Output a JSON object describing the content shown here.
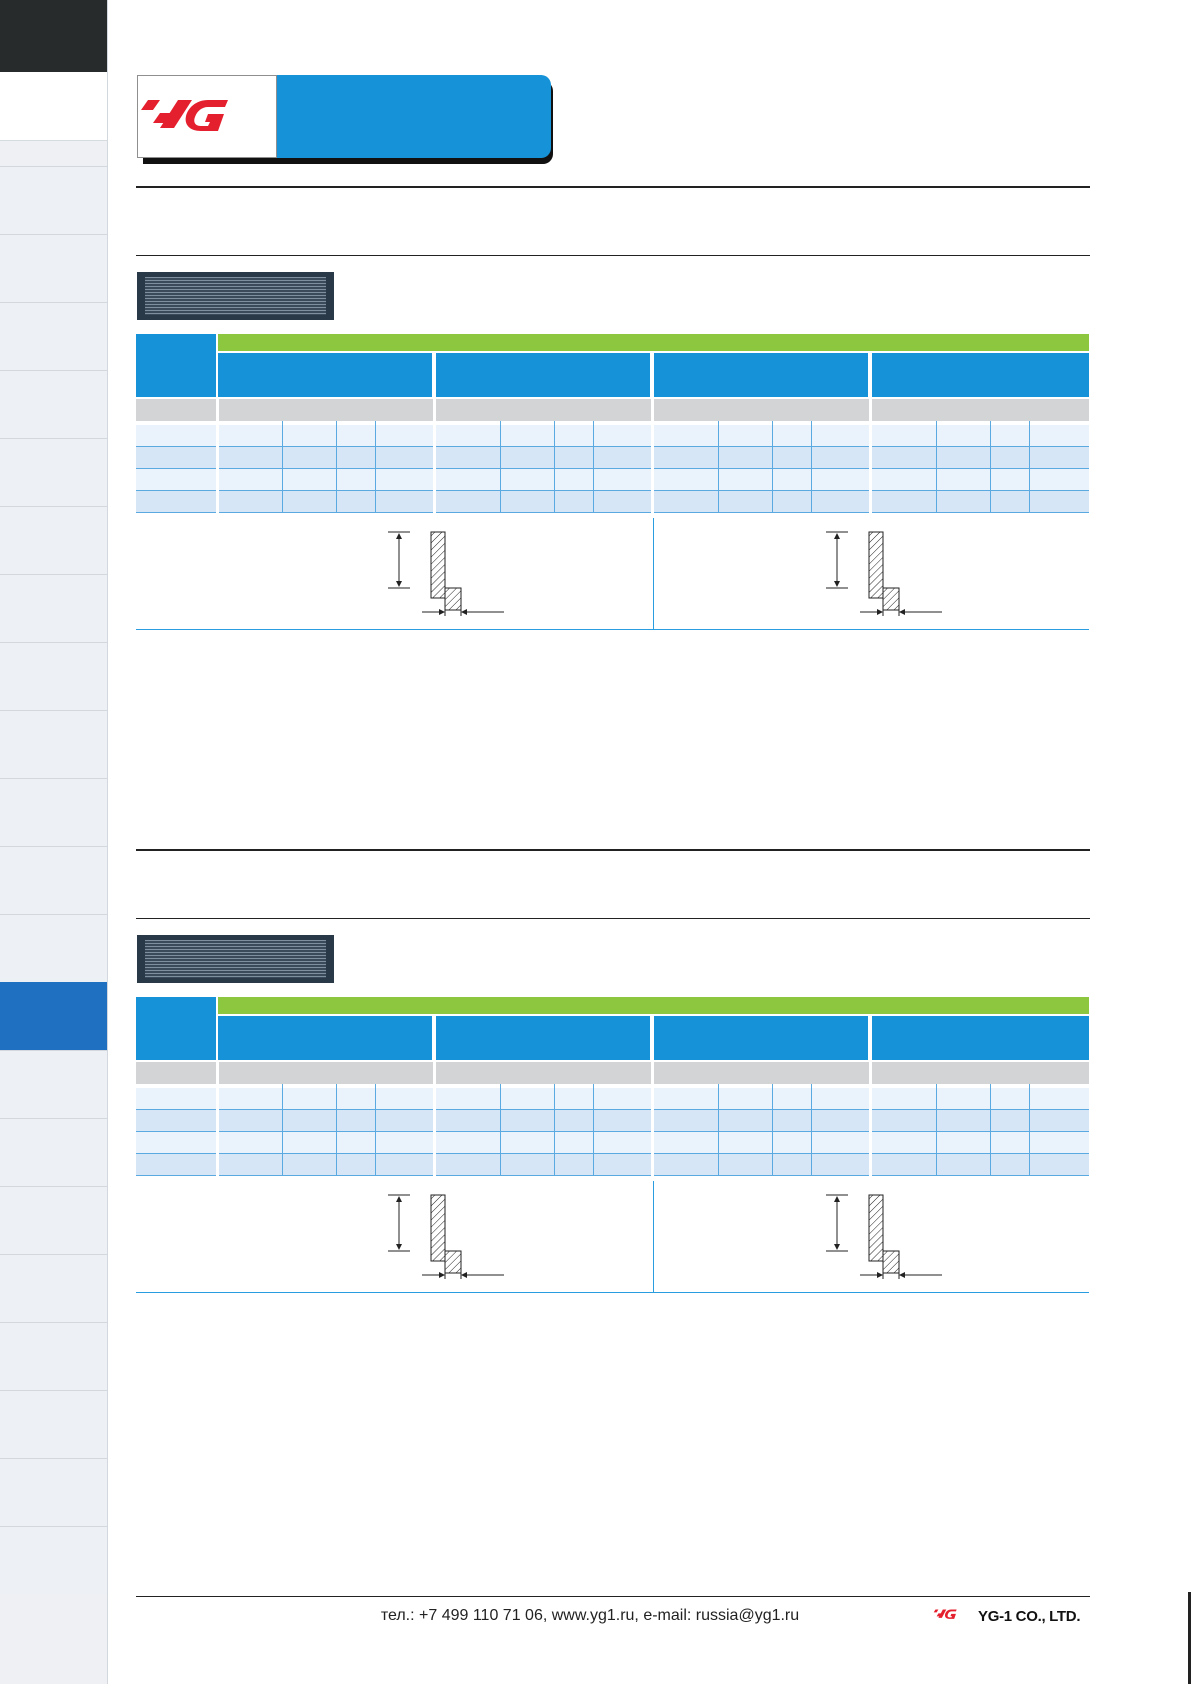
{
  "footer": {
    "contact": "тел.: +7 499 110 71 06, www.yg1.ru, e-mail: russia@yg1.ru",
    "company": "YG-1 CO., LTD."
  },
  "logo": {
    "name": "yg-logo"
  },
  "sidebar": {
    "item_count": 24,
    "active_index": 12
  },
  "colors": {
    "accent_blue": "#1592d8",
    "accent_green": "#8dc63f",
    "brand_red": "#e5202e",
    "sidebar_active": "#1f70c1"
  }
}
